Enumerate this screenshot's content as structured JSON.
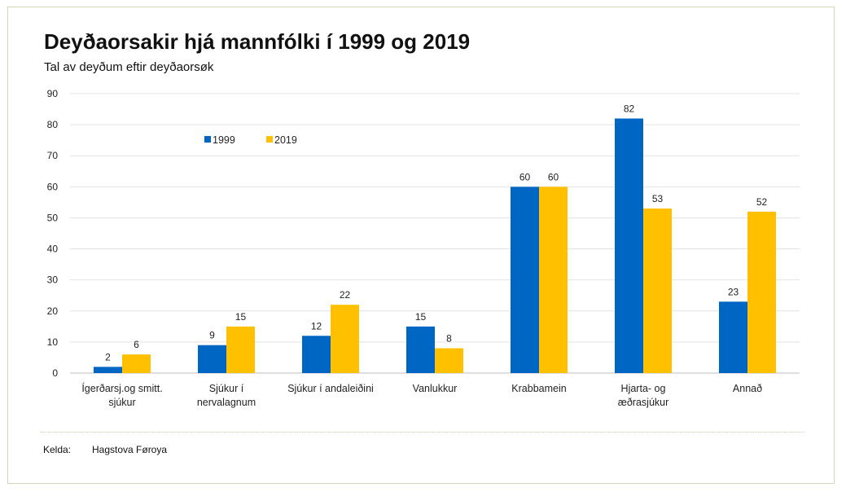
{
  "title": "Deyðaorsakir hjá mannfólki í 1999 og 2019",
  "subtitle": "Tal av deyðum eftir deyðaorsøk",
  "source": {
    "label": "Kelda:",
    "value": "Hagstova Føroya"
  },
  "chart_data": {
    "type": "bar",
    "categories": [
      "Ígerðarsj.og smitt. sjúkur",
      "Sjúkur í nervalagnum",
      "Sjúkur í andaleiðini",
      "Vanlukkur",
      "Krabbamein",
      "Hjarta- og æðrasjúkur",
      "Annað"
    ],
    "category_lines": [
      [
        "Ígerðarsj.og smitt.",
        "sjúkur"
      ],
      [
        "Sjúkur í",
        "nervalagnum"
      ],
      [
        "Sjúkur í andaleiðini"
      ],
      [
        "Vanlukkur"
      ],
      [
        "Krabbamein"
      ],
      [
        "Hjarta- og",
        "æðrasjúkur"
      ],
      [
        "Annað"
      ]
    ],
    "series": [
      {
        "name": "1999",
        "color": "#0066c4",
        "values": [
          2,
          9,
          12,
          15,
          60,
          82,
          23
        ]
      },
      {
        "name": "2019",
        "color": "#ffc000",
        "values": [
          6,
          15,
          22,
          8,
          60,
          53,
          52
        ]
      }
    ],
    "ylim": [
      0,
      90
    ],
    "yticks": [
      0,
      10,
      20,
      30,
      40,
      50,
      60,
      70,
      80,
      90
    ],
    "grid": true,
    "legend_position": "top-left",
    "data_labels": true,
    "xlabel": "",
    "ylabel": ""
  }
}
